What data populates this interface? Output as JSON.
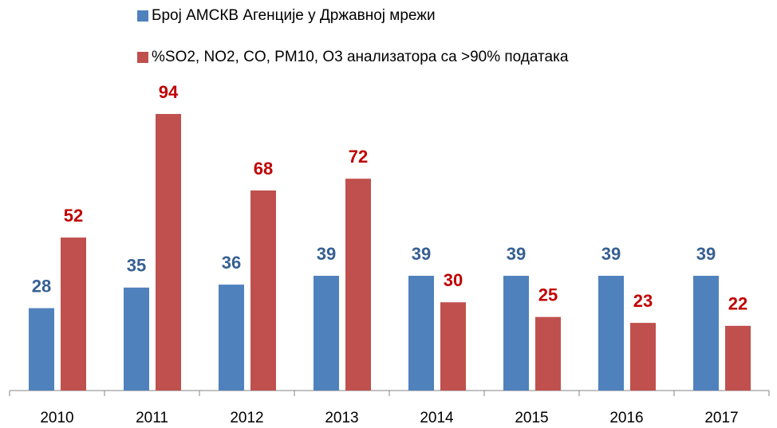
{
  "chart_data": {
    "type": "bar",
    "categories": [
      "2010",
      "2011",
      "2012",
      "2013",
      "2014",
      "2015",
      "2016",
      "2017"
    ],
    "series": [
      {
        "name": "Број АМСКВ Агенције у Државној мрежи",
        "color": "#4f81bd",
        "label_color": "#376092",
        "values": [
          28,
          35,
          36,
          39,
          39,
          39,
          39,
          39
        ]
      },
      {
        "name": "%SO2, NO2, CO, PM10, O3 анализатора са >90% података",
        "color": "#c0504d",
        "label_color": "#c00000",
        "values": [
          52,
          94,
          68,
          72,
          30,
          25,
          23,
          22
        ]
      }
    ]
  }
}
